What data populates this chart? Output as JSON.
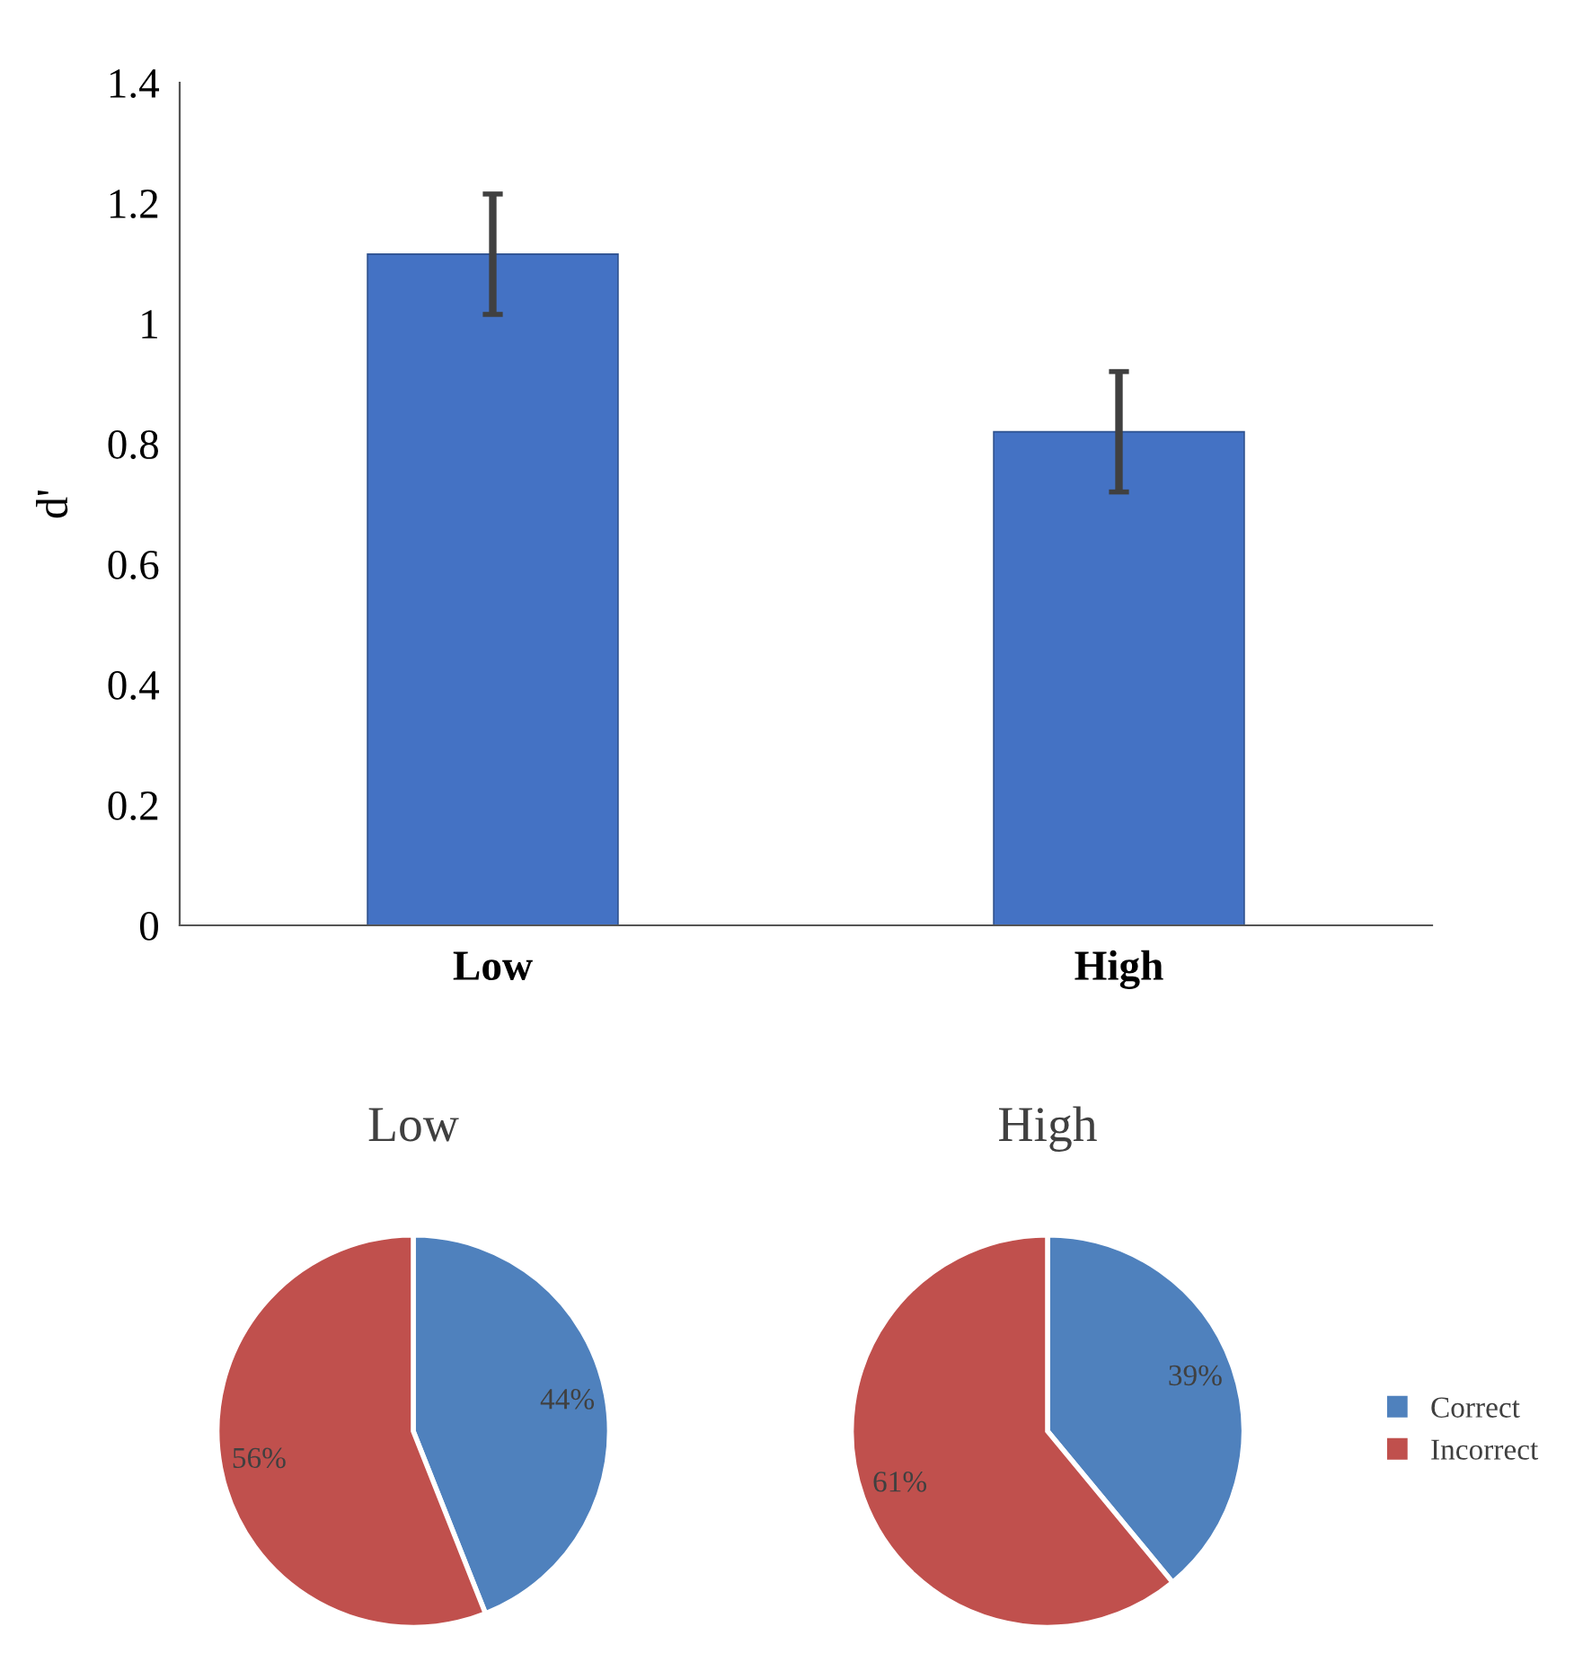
{
  "chart_data": [
    {
      "type": "bar",
      "ylabel": "d'",
      "categories": [
        "Low",
        "High"
      ],
      "values": [
        1.115,
        0.82
      ],
      "errors": [
        0.1,
        0.1
      ],
      "color": "#4472c4",
      "ylim": [
        0,
        1.4
      ],
      "yticks": [
        0,
        {
          "value": 0.2,
          "label": "0.2"
        },
        {
          "value": 0.4,
          "label": "0.4"
        },
        {
          "value": 0.6,
          "label": "0.6"
        },
        {
          "value": 0.8,
          "label": "0.8"
        },
        1,
        {
          "value": 1.2,
          "label": "1.2"
        },
        {
          "value": 1.4,
          "label": "1.4"
        }
      ],
      "grid": false
    },
    {
      "type": "pie",
      "title": "Low",
      "categories": [
        "Correct",
        "Incorrect"
      ],
      "values": [
        44,
        56
      ],
      "colors": [
        "#4f81bd",
        "#c0504d"
      ],
      "value_labels": [
        "44%",
        "56%"
      ],
      "legend": "right"
    },
    {
      "type": "pie",
      "title": "High",
      "categories": [
        null,
        null
      ],
      "values": [
        39,
        61
      ],
      "colors": [
        "#4f81bd",
        "#c0504d"
      ],
      "value_labels": [
        "39%",
        "61%"
      ]
    }
  ]
}
